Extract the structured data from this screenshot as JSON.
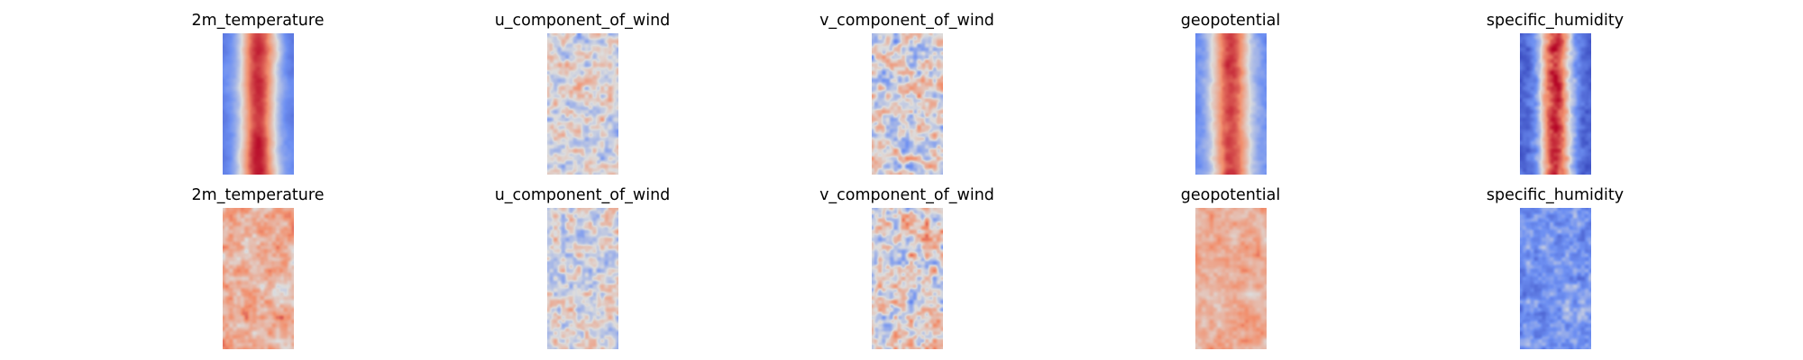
{
  "chart_data": {
    "type": "heatmap",
    "colormap": "coolwarm",
    "colors": {
      "low": "#3b4cc0",
      "mid": "#dddddd",
      "high": "#b40426",
      "background": "#ffffff",
      "text": "#000000"
    },
    "axes_visible": false,
    "rows": [
      {
        "row": 1,
        "panels": [
          {
            "title": "2m_temperature",
            "field": "2m_temperature"
          },
          {
            "title": "u_component_of_wind",
            "field": "u_component_of_wind"
          },
          {
            "title": "v_component_of_wind",
            "field": "v_component_of_wind"
          },
          {
            "title": "geopotential",
            "field": "geopotential"
          },
          {
            "title": "specific_humidity",
            "field": "specific_humidity"
          }
        ]
      },
      {
        "row": 2,
        "panels": [
          {
            "title": "2m_temperature",
            "field": "2m_temperature"
          },
          {
            "title": "u_component_of_wind",
            "field": "u_component_of_wind"
          },
          {
            "title": "v_component_of_wind",
            "field": "v_component_of_wind"
          },
          {
            "title": "geopotential",
            "field": "geopotential"
          },
          {
            "title": "specific_humidity",
            "field": "specific_humidity"
          }
        ]
      }
    ]
  }
}
